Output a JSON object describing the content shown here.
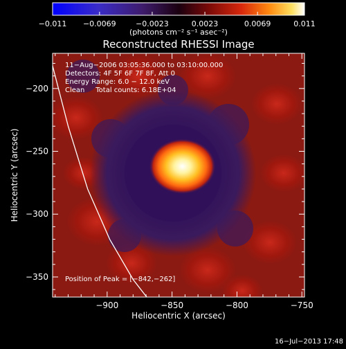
{
  "chart_data": {
    "type": "heatmap",
    "title": "Reconstructed RHESSI Image",
    "xlabel": "Heliocentric X (arcsec)",
    "ylabel": "Heliocentric Y (arcsec)",
    "xlim": [
      -942,
      -748
    ],
    "ylim": [
      -366,
      -172
    ],
    "x_ticks": [
      {
        "v": -900,
        "label": "−900"
      },
      {
        "v": -850,
        "label": "−850"
      },
      {
        "v": -800,
        "label": "−800"
      },
      {
        "v": -750,
        "label": "−750"
      }
    ],
    "y_ticks": [
      {
        "v": -200,
        "label": "−200"
      },
      {
        "v": -250,
        "label": "−250"
      },
      {
        "v": -300,
        "label": "−300"
      },
      {
        "v": -350,
        "label": "−350"
      }
    ],
    "colorbar": {
      "range": [
        -0.011,
        0.011
      ],
      "ticks": [
        {
          "v": -0.011,
          "label": "−0.011"
        },
        {
          "v": -0.0069,
          "label": "−0.0069"
        },
        {
          "v": -0.0023,
          "label": "−0.0023"
        },
        {
          "v": 0.0023,
          "label": "0.0023"
        },
        {
          "v": 0.0069,
          "label": "0.0069"
        },
        {
          "v": 0.011,
          "label": "0.011"
        }
      ],
      "unit_label": "(photons cm⁻² s⁻¹ asec⁻²)"
    },
    "annotations": [
      "11−Aug−2006 03:05:36.000 to 03:10:00.000",
      "Detectors: 4F 5F 6F 7F 8F, Att 0",
      "Energy Range: 6.0 − 12.0 keV",
      "Clean     Total counts: 6.18E+04"
    ],
    "peak_label": "Position of Peak = [−842,−262]",
    "peak": {
      "x": -842,
      "y": -262
    },
    "limb_curve": [
      {
        "x": -945,
        "y": -170
      },
      {
        "x": -930,
        "y": -230
      },
      {
        "x": -915,
        "y": -280
      },
      {
        "x": -898,
        "y": -320
      },
      {
        "x": -880,
        "y": -352
      },
      {
        "x": -868,
        "y": -368
      }
    ],
    "colors": {
      "ring_dark": "#3a1560",
      "ring_red": "#a81a12",
      "core_yellow": "#ffe770",
      "core_white": "#ffffff"
    }
  },
  "footer": {
    "timestamp": "16−Jul−2013 17:48"
  }
}
